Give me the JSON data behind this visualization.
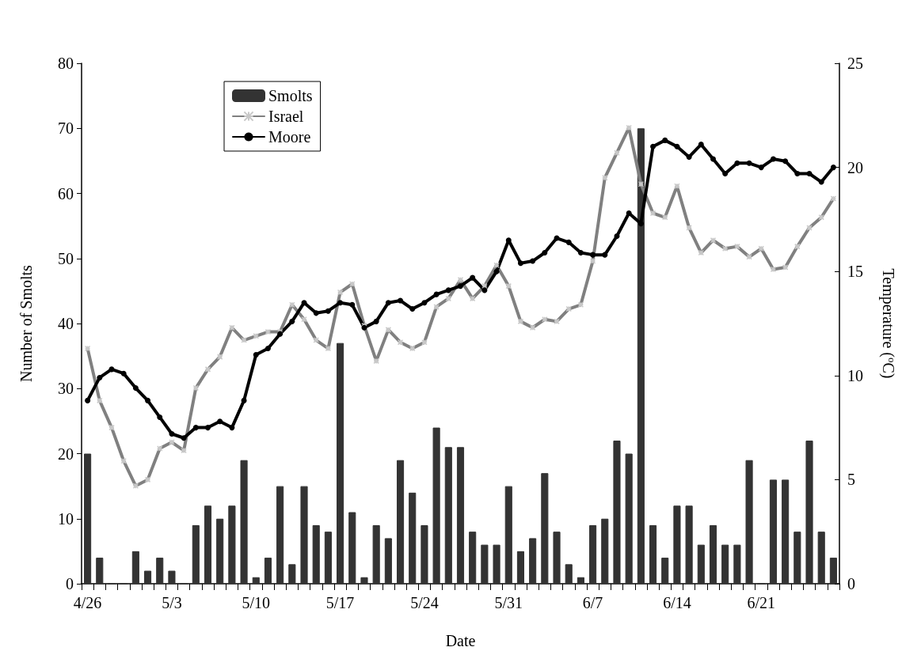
{
  "chart_data": {
    "type": "bar",
    "xlabel": "Date",
    "ylabel": "Number of Smolts",
    "y2label": "Temperature ($^{o}$C)",
    "categories": [
      "4/26",
      null,
      null,
      null,
      null,
      null,
      null,
      "5/3",
      null,
      null,
      null,
      null,
      null,
      null,
      "5/10",
      null,
      null,
      null,
      null,
      null,
      null,
      "5/17",
      null,
      null,
      null,
      null,
      null,
      null,
      "5/24",
      null,
      null,
      null,
      null,
      null,
      null,
      "5/31",
      null,
      null,
      null,
      null,
      null,
      null,
      "6/7",
      null,
      null,
      null,
      null,
      null,
      null,
      "6/14",
      null,
      null,
      null,
      null,
      null,
      null,
      "6/21",
      null,
      null,
      null,
      null,
      null,
      null
    ],
    "series": [
      {
        "name": "Smolts",
        "color": "#333333",
        "values": [
          20,
          4,
          0,
          0,
          5,
          2,
          4,
          2,
          0,
          9,
          12,
          10,
          12,
          19,
          1,
          4,
          15,
          3,
          15,
          9,
          8,
          37,
          11,
          1,
          9,
          7,
          19,
          14,
          9,
          24,
          21,
          21,
          8,
          6,
          6,
          15,
          5,
          7,
          17,
          8,
          3,
          1,
          9,
          10,
          22,
          20,
          70,
          9,
          4,
          12,
          12,
          6,
          9,
          6,
          6,
          19,
          0,
          16,
          16,
          8,
          22,
          8,
          4
        ]
      },
      {
        "name": "Israel",
        "type": "line",
        "axis": "y2",
        "color": "#808080",
        "marker": "cross",
        "values": [
          11.3,
          8.8,
          7.5,
          5.9,
          4.7,
          5.0,
          6.5,
          6.8,
          6.4,
          9.4,
          10.3,
          10.9,
          12.3,
          11.7,
          11.9,
          12.1,
          12.1,
          13.4,
          12.7,
          11.7,
          11.3,
          14.0,
          14.4,
          12.4,
          10.7,
          12.2,
          11.6,
          11.3,
          11.6,
          13.3,
          13.7,
          14.6,
          13.7,
          14.3,
          15.3,
          14.3,
          12.6,
          12.3,
          12.7,
          12.6,
          13.2,
          13.4,
          15.5,
          19.5,
          20.7,
          21.9,
          19.2,
          17.8,
          17.6,
          19.1,
          17.1,
          15.9,
          16.5,
          16.1,
          16.2,
          15.7,
          16.1,
          15.1,
          15.2,
          16.2,
          17.1,
          17.6,
          18.5
        ]
      },
      {
        "name": "Moore",
        "type": "line",
        "axis": "y2",
        "color": "#000000",
        "marker": "circle",
        "values": [
          8.8,
          9.9,
          10.3,
          10.1,
          9.4,
          8.8,
          8.0,
          7.2,
          7.0,
          7.5,
          7.5,
          7.8,
          7.5,
          8.8,
          11.0,
          11.3,
          12.0,
          12.6,
          13.5,
          13.0,
          13.1,
          13.5,
          13.4,
          12.3,
          12.6,
          13.5,
          13.6,
          13.2,
          13.5,
          13.9,
          14.1,
          14.3,
          14.7,
          14.1,
          15.0,
          16.5,
          15.4,
          15.5,
          15.9,
          16.6,
          16.4,
          15.9,
          15.8,
          15.8,
          16.7,
          17.8,
          17.3,
          21.0,
          21.3,
          21.0,
          20.5,
          21.1,
          20.4,
          19.7,
          20.2,
          20.2,
          20.0,
          20.4,
          20.3,
          19.7,
          19.7,
          19.3,
          20.0
        ]
      }
    ],
    "ylim": [
      0,
      80
    ],
    "yticks": [
      0,
      10,
      20,
      30,
      40,
      50,
      60,
      70,
      80
    ],
    "y2lim": [
      0,
      25
    ],
    "y2ticks": [
      0,
      5,
      10,
      15,
      20,
      25
    ],
    "legend": "top left",
    "grid": false,
    "line_style": "solid"
  }
}
